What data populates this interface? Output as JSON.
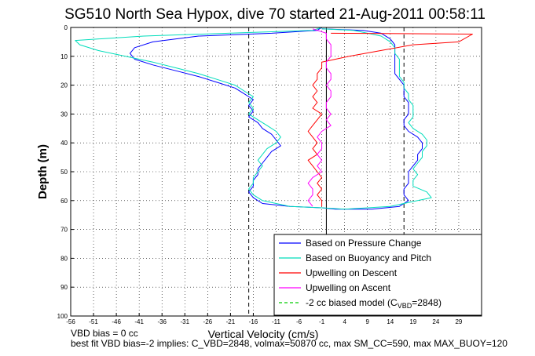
{
  "chart_data": {
    "type": "line",
    "title": "SG510 North Sea Hypox, dive 70 started 21-Aug-2011 00:58:11",
    "xlabel": "Vertical Velocity (cm/s)",
    "ylabel": "Depth (m)",
    "xlim": [
      -56,
      34
    ],
    "ylim": [
      0,
      100
    ],
    "y_reversed": true,
    "grid": true,
    "xticks": [
      -56,
      -51,
      -46,
      -41,
      -36,
      -31,
      -26,
      -21,
      -16,
      -11,
      -6,
      -1,
      4,
      9,
      14,
      19,
      24,
      29
    ],
    "yticks": [
      0,
      10,
      20,
      30,
      40,
      50,
      60,
      70,
      80,
      90,
      100
    ],
    "legend_position": "bottom-right",
    "series": [
      {
        "name": "Based on Pressure Change",
        "color": "#0000ff",
        "points": [
          [
            -1,
            0
          ],
          [
            -2,
            1
          ],
          [
            -12,
            2
          ],
          [
            -28,
            3
          ],
          [
            -38,
            5
          ],
          [
            -42,
            7
          ],
          [
            -43,
            9
          ],
          [
            -42,
            11
          ],
          [
            -38,
            13
          ],
          [
            -33,
            15
          ],
          [
            -28,
            17
          ],
          [
            -24,
            19
          ],
          [
            -20,
            21
          ],
          [
            -18,
            23
          ],
          [
            -16,
            25
          ],
          [
            -17,
            27
          ],
          [
            -16,
            29
          ],
          [
            -17,
            31
          ],
          [
            -15,
            33
          ],
          [
            -14,
            35
          ],
          [
            -12,
            37
          ],
          [
            -11,
            39
          ],
          [
            -10,
            41
          ],
          [
            -12,
            43
          ],
          [
            -13,
            45
          ],
          [
            -14,
            47
          ],
          [
            -15,
            49
          ],
          [
            -15,
            51
          ],
          [
            -16,
            53
          ],
          [
            -16,
            55
          ],
          [
            -17,
            57
          ],
          [
            -16,
            59
          ],
          [
            -14,
            61
          ],
          [
            -8,
            62
          ],
          [
            -1,
            62.5
          ],
          [
            2,
            63
          ],
          [
            10,
            63
          ],
          [
            16,
            62
          ],
          [
            17,
            61
          ],
          [
            18,
            60
          ],
          [
            17,
            58
          ],
          [
            17,
            56
          ],
          [
            18,
            54
          ],
          [
            18,
            52
          ],
          [
            18,
            50
          ],
          [
            19,
            48
          ],
          [
            20,
            46
          ],
          [
            20,
            44
          ],
          [
            21,
            42
          ],
          [
            21,
            40
          ],
          [
            20,
            38
          ],
          [
            18,
            36
          ],
          [
            17,
            34
          ],
          [
            17,
            32
          ],
          [
            18,
            30
          ],
          [
            18,
            28
          ],
          [
            18,
            26
          ],
          [
            17,
            24
          ],
          [
            17,
            22
          ],
          [
            17,
            20
          ],
          [
            16,
            18
          ],
          [
            15,
            16
          ],
          [
            15,
            14
          ],
          [
            15,
            12
          ],
          [
            15,
            10
          ],
          [
            15,
            8
          ],
          [
            15,
            6
          ],
          [
            14,
            4
          ],
          [
            12,
            2
          ],
          [
            8,
            1
          ],
          [
            -1,
            0.5
          ]
        ]
      },
      {
        "name": "Based on Buoyancy and Pitch",
        "color": "#00ddbb",
        "points": [
          [
            -1,
            0
          ],
          [
            -3,
            1
          ],
          [
            -40,
            3
          ],
          [
            -55,
            4.5
          ],
          [
            -54,
            6
          ],
          [
            -50,
            8
          ],
          [
            -44,
            10
          ],
          [
            -38,
            12
          ],
          [
            -33,
            14
          ],
          [
            -28,
            16
          ],
          [
            -24,
            18
          ],
          [
            -20,
            20
          ],
          [
            -18,
            22
          ],
          [
            -16,
            24
          ],
          [
            -17,
            26
          ],
          [
            -16,
            28
          ],
          [
            -17,
            30
          ],
          [
            -15,
            32
          ],
          [
            -13,
            34
          ],
          [
            -11,
            36
          ],
          [
            -10,
            38
          ],
          [
            -11,
            40
          ],
          [
            -13,
            42
          ],
          [
            -14,
            44
          ],
          [
            -15,
            46
          ],
          [
            -14,
            48
          ],
          [
            -15,
            50
          ],
          [
            -16,
            52
          ],
          [
            -16,
            54
          ],
          [
            -17,
            56
          ],
          [
            -16,
            58
          ],
          [
            -14,
            60
          ],
          [
            -8,
            62
          ],
          [
            -1,
            62.5
          ],
          [
            4,
            63
          ],
          [
            14,
            62
          ],
          [
            20,
            60
          ],
          [
            23,
            59
          ],
          [
            22,
            57
          ],
          [
            19,
            55
          ],
          [
            19,
            53
          ],
          [
            20,
            51
          ],
          [
            19,
            49
          ],
          [
            20,
            47
          ],
          [
            21,
            45
          ],
          [
            21,
            43
          ],
          [
            22,
            41
          ],
          [
            22,
            39
          ],
          [
            21,
            37
          ],
          [
            19,
            35
          ],
          [
            18,
            33
          ],
          [
            19,
            31
          ],
          [
            19,
            29
          ],
          [
            19,
            27
          ],
          [
            18,
            25
          ],
          [
            18,
            23
          ],
          [
            17,
            21
          ],
          [
            17,
            19
          ],
          [
            16,
            17
          ],
          [
            16,
            15
          ],
          [
            16,
            13
          ],
          [
            16,
            11
          ],
          [
            15,
            9
          ],
          [
            15,
            7
          ],
          [
            14,
            5
          ],
          [
            12,
            3
          ],
          [
            6,
            1
          ],
          [
            -1,
            0.5
          ]
        ]
      },
      {
        "name": "Upwelling on Descent",
        "color": "#ff0000",
        "points": [
          [
            1,
            2
          ],
          [
            32,
            2.3
          ],
          [
            29,
            5
          ],
          [
            19,
            6
          ],
          [
            12,
            8
          ],
          [
            5,
            10
          ],
          [
            -1,
            12
          ],
          [
            -1,
            14
          ],
          [
            -2,
            16
          ],
          [
            -2,
            18
          ],
          [
            -3,
            20
          ],
          [
            -2,
            22
          ],
          [
            -3,
            24
          ],
          [
            -2,
            26
          ],
          [
            -3,
            28
          ],
          [
            -1,
            30
          ],
          [
            -2,
            32
          ],
          [
            -3,
            34
          ],
          [
            -4,
            36
          ],
          [
            -3,
            38
          ],
          [
            -2,
            40
          ],
          [
            -3,
            42
          ],
          [
            -2,
            44
          ],
          [
            -4,
            46
          ],
          [
            -3,
            48
          ],
          [
            -2,
            50
          ],
          [
            -1,
            52
          ],
          [
            -2,
            54
          ],
          [
            -1,
            56
          ],
          [
            -2,
            58
          ],
          [
            -1,
            60
          ],
          [
            -1,
            62
          ]
        ]
      },
      {
        "name": "Upwelling on Ascent",
        "color": "#ff00ff",
        "points": [
          [
            -3,
            62
          ],
          [
            -4,
            60
          ],
          [
            -3,
            58
          ],
          [
            -3,
            56
          ],
          [
            -4,
            54
          ],
          [
            -3,
            52
          ],
          [
            -1,
            50
          ],
          [
            -2,
            48
          ],
          [
            -1,
            46
          ],
          [
            -2,
            44
          ],
          [
            -1,
            42
          ],
          [
            -1,
            40
          ],
          [
            -2,
            38
          ],
          [
            -1,
            36
          ],
          [
            1,
            34
          ],
          [
            0,
            32
          ],
          [
            1,
            30
          ],
          [
            0,
            28
          ],
          [
            0,
            26
          ],
          [
            1,
            24
          ],
          [
            1,
            22
          ],
          [
            0,
            20
          ],
          [
            1,
            18
          ],
          [
            1,
            16
          ],
          [
            0,
            14
          ],
          [
            0,
            12
          ],
          [
            1,
            10
          ],
          [
            1,
            8
          ],
          [
            1,
            6
          ],
          [
            0,
            4
          ],
          [
            0,
            2
          ],
          [
            -3,
            0.5
          ]
        ]
      },
      {
        "name": "-2 cc biased model (C_VBD=2848)",
        "color": "#00cc00",
        "dashed": true,
        "points": []
      }
    ],
    "reference_lines": [
      {
        "x": -17,
        "style": "dashed",
        "color": "#000000"
      },
      {
        "x": 0,
        "style": "solid",
        "color": "#000000"
      },
      {
        "x": 17,
        "style": "dashed",
        "color": "#000000"
      }
    ]
  },
  "legend": {
    "items": [
      {
        "label": "Based on Pressure Change",
        "color": "#0000ff",
        "dashed": false
      },
      {
        "label": "Based on Buoyancy and Pitch",
        "color": "#00ddbb",
        "dashed": false
      },
      {
        "label": "Upwelling on Descent",
        "color": "#ff0000",
        "dashed": false
      },
      {
        "label": "Upwelling on Ascent",
        "color": "#ff00ff",
        "dashed": false
      },
      {
        "label": "-2 cc biased model (C",
        "sub": "VBD",
        "suffix": "=2848)",
        "color": "#00cc00",
        "dashed": true
      }
    ]
  },
  "notes": {
    "vbd_bias": "VBD bias = 0 cc",
    "fit": "best fit VBD bias=-2 implies: C_VBD=2848, volmax=50870 cc, max SM_CC=590, max MAX_BUOY=120"
  }
}
